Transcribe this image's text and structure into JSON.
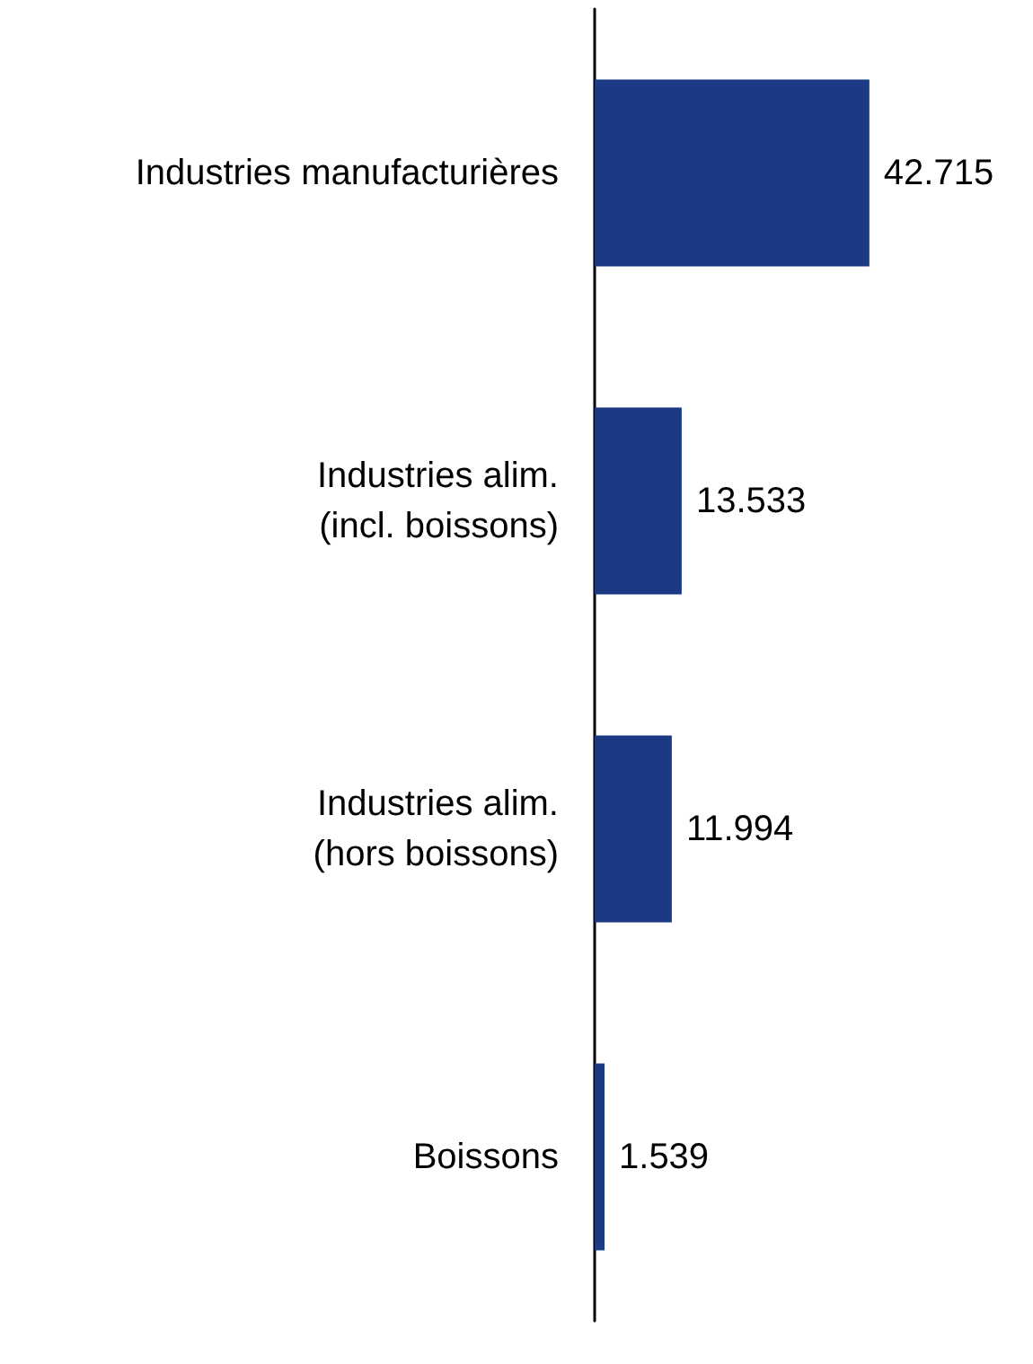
{
  "chart_data": {
    "type": "bar",
    "orientation": "horizontal",
    "categories": [
      "Industries manufacturières",
      "Industries alim.\n(incl. boissons)",
      "Industries alim.\n(hors boissons)",
      "Boissons"
    ],
    "values": [
      42.715,
      13.533,
      11.994,
      1.539
    ],
    "color": "#1c3a84",
    "data_labels": true
  }
}
